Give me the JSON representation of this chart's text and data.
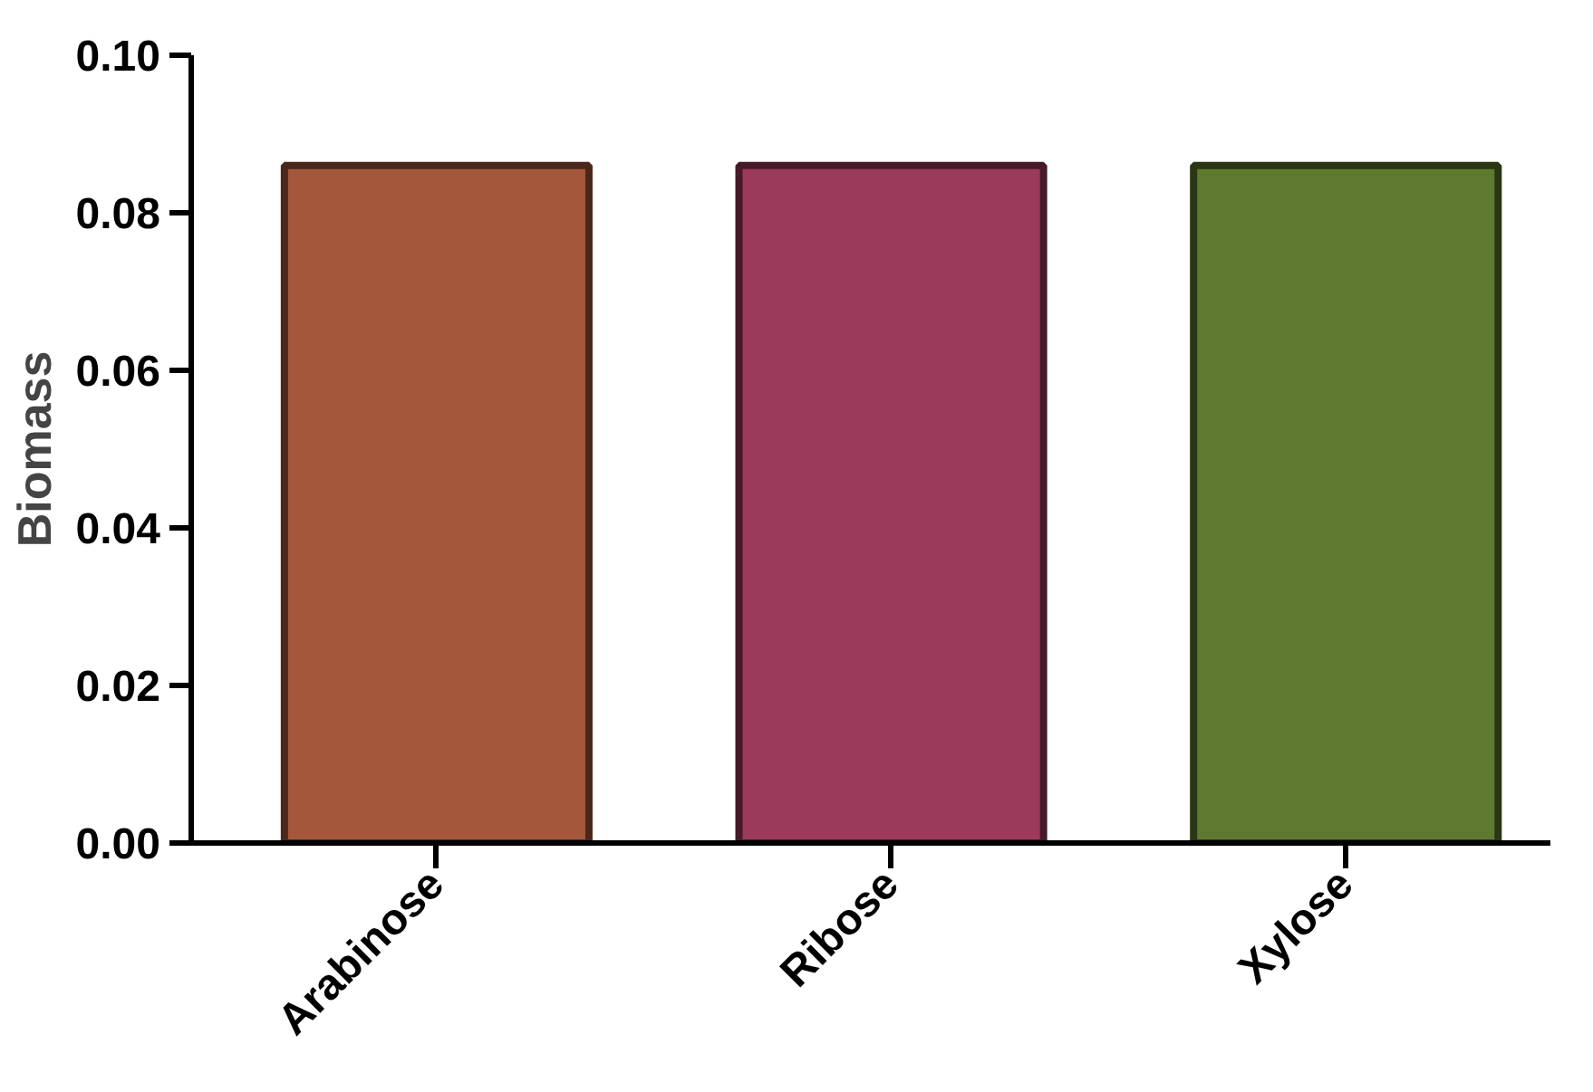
{
  "chart_data": {
    "type": "bar",
    "ylabel": "Biomass",
    "categories": [
      "Arabinose",
      "Ribose",
      "Xylose"
    ],
    "values": [
      0.086,
      0.086,
      0.086
    ],
    "colors": [
      "#a5573c",
      "#9c3a5c",
      "#5e7a2e"
    ],
    "ylim": [
      0,
      0.1
    ],
    "yticks": [
      {
        "value": 0,
        "label": "0.00"
      },
      {
        "value": 0.02,
        "label": "0.02"
      },
      {
        "value": 0.04,
        "label": "0.04"
      },
      {
        "value": 0.06,
        "label": "0.06"
      },
      {
        "value": 0.08,
        "label": "0.08"
      },
      {
        "value": 0.1,
        "label": "0.10"
      }
    ],
    "grid": false
  }
}
